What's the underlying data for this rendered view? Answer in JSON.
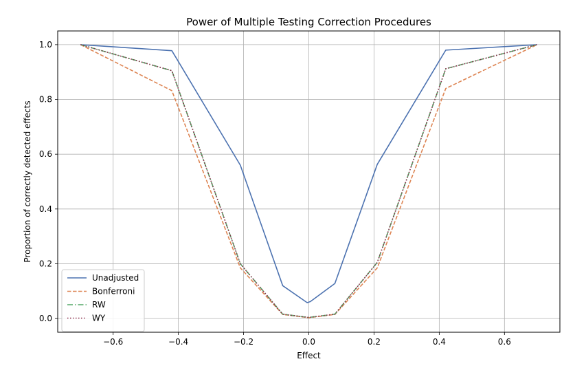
{
  "chart_data": {
    "type": "line",
    "title": "Power of Multiple Testing Correction Procedures",
    "xlabel": "Effect",
    "ylabel": "Proportion of correctly detected effects",
    "xlim": [
      -0.77,
      0.77
    ],
    "ylim": [
      -0.05,
      1.05
    ],
    "xticks": [
      -0.6,
      -0.4,
      -0.2,
      0.0,
      0.2,
      0.4,
      0.6
    ],
    "xtick_labels": [
      "−0.6",
      "−0.4",
      "−0.2",
      "0.0",
      "0.2",
      "0.4",
      "0.6"
    ],
    "yticks": [
      0.0,
      0.2,
      0.4,
      0.6,
      0.8,
      1.0
    ],
    "ytick_labels": [
      "0.0",
      "0.2",
      "0.4",
      "0.6",
      "0.8",
      "1.0"
    ],
    "grid": true,
    "legend_position": "lower-left",
    "x": [
      -0.7,
      -0.42,
      -0.21,
      -0.08,
      0.0,
      0.08,
      0.21,
      0.42,
      0.7
    ],
    "series": [
      {
        "name": "Unadjusted",
        "color": "#4c72b0",
        "dash": "solid",
        "x": [
          -0.7,
          -0.42,
          -0.21,
          -0.08,
          -0.005,
          0.005,
          0.08,
          0.21,
          0.42,
          0.7
        ],
        "values": [
          1.0,
          0.978,
          0.56,
          0.12,
          0.058,
          0.062,
          0.128,
          0.563,
          0.98,
          1.0
        ]
      },
      {
        "name": "Bonferroni",
        "color": "#dd8452",
        "dash": "dashed",
        "x": [
          -0.7,
          -0.42,
          -0.21,
          -0.08,
          0.0,
          0.08,
          0.21,
          0.42,
          0.7
        ],
        "values": [
          1.0,
          0.832,
          0.185,
          0.015,
          0.003,
          0.015,
          0.185,
          0.84,
          1.0
        ]
      },
      {
        "name": "RW",
        "color": "#55a868",
        "dash": "dashdot",
        "x": [
          -0.7,
          -0.42,
          -0.21,
          -0.08,
          0.0,
          0.08,
          0.21,
          0.42,
          0.7
        ],
        "values": [
          1.0,
          0.905,
          0.2,
          0.016,
          0.004,
          0.016,
          0.205,
          0.912,
          1.0
        ]
      },
      {
        "name": "WY",
        "color": "#8c2d4a",
        "dash": "dotted",
        "x": [
          -0.7,
          -0.42,
          -0.21,
          -0.08,
          0.0,
          0.08,
          0.21,
          0.42,
          0.7
        ],
        "values": [
          1.0,
          0.905,
          0.2,
          0.016,
          0.004,
          0.016,
          0.205,
          0.912,
          1.0
        ]
      }
    ]
  }
}
